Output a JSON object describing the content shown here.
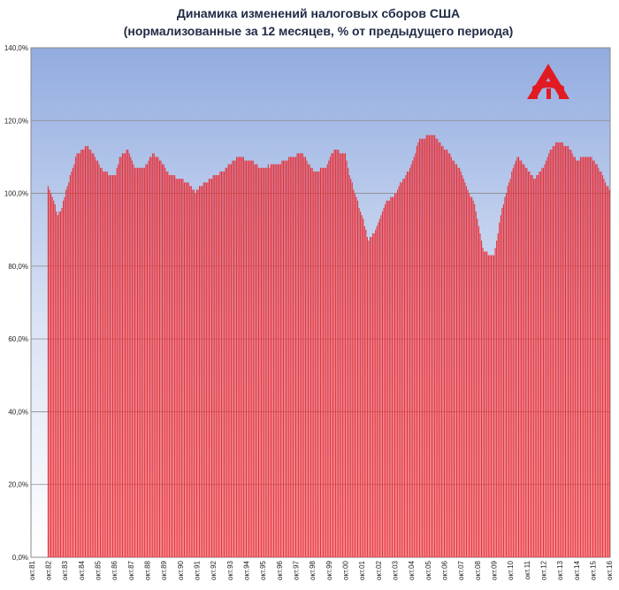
{
  "chart_data": {
    "type": "bar",
    "title": "Динамика изменений налоговых сборов США",
    "subtitle": "(нормализованные за 12 месяцев, % от предыдущего периода)",
    "color": "#e8323a",
    "grid": true,
    "ylim": [
      0,
      140
    ],
    "yticks": [
      {
        "value": 0,
        "label": "0,0%"
      },
      {
        "value": 20,
        "label": "20,0%"
      },
      {
        "value": 40,
        "label": "40,0%"
      },
      {
        "value": 60,
        "label": "60,0%"
      },
      {
        "value": 80,
        "label": "80,0%"
      },
      {
        "value": 100,
        "label": "100,0%"
      },
      {
        "value": 120,
        "label": "120,0%"
      },
      {
        "value": 140,
        "label": "140,0%"
      }
    ],
    "categories": [
      "окт.81",
      null,
      null,
      null,
      null,
      null,
      null,
      null,
      null,
      null,
      null,
      null,
      "окт.82",
      null,
      null,
      null,
      null,
      null,
      null,
      null,
      null,
      null,
      null,
      null,
      "окт.83",
      null,
      null,
      null,
      null,
      null,
      null,
      null,
      null,
      null,
      null,
      null,
      "окт.84",
      null,
      null,
      null,
      null,
      null,
      null,
      null,
      null,
      null,
      null,
      null,
      "окт.85",
      null,
      null,
      null,
      null,
      null,
      null,
      null,
      null,
      null,
      null,
      null,
      "окт.86",
      null,
      null,
      null,
      null,
      null,
      null,
      null,
      null,
      null,
      null,
      null,
      "окт.87",
      null,
      null,
      null,
      null,
      null,
      null,
      null,
      null,
      null,
      null,
      null,
      "окт.88",
      null,
      null,
      null,
      null,
      null,
      null,
      null,
      null,
      null,
      null,
      null,
      "окт.89",
      null,
      null,
      null,
      null,
      null,
      null,
      null,
      null,
      null,
      null,
      null,
      "окт.90",
      null,
      null,
      null,
      null,
      null,
      null,
      null,
      null,
      null,
      null,
      null,
      "окт.91",
      null,
      null,
      null,
      null,
      null,
      null,
      null,
      null,
      null,
      null,
      null,
      "окт.92",
      null,
      null,
      null,
      null,
      null,
      null,
      null,
      null,
      null,
      null,
      null,
      "окт.93",
      null,
      null,
      null,
      null,
      null,
      null,
      null,
      null,
      null,
      null,
      null,
      "окт.94",
      null,
      null,
      null,
      null,
      null,
      null,
      null,
      null,
      null,
      null,
      null,
      "окт.95",
      null,
      null,
      null,
      null,
      null,
      null,
      null,
      null,
      null,
      null,
      null,
      "окт.96",
      null,
      null,
      null,
      null,
      null,
      null,
      null,
      null,
      null,
      null,
      null,
      "окт.97",
      null,
      null,
      null,
      null,
      null,
      null,
      null,
      null,
      null,
      null,
      null,
      "окт.98",
      null,
      null,
      null,
      null,
      null,
      null,
      null,
      null,
      null,
      null,
      null,
      "окт.99",
      null,
      null,
      null,
      null,
      null,
      null,
      null,
      null,
      null,
      null,
      null,
      "окт.00",
      null,
      null,
      null,
      null,
      null,
      null,
      null,
      null,
      null,
      null,
      null,
      "окт.01",
      null,
      null,
      null,
      null,
      null,
      null,
      null,
      null,
      null,
      null,
      null,
      "окт.02",
      null,
      null,
      null,
      null,
      null,
      null,
      null,
      null,
      null,
      null,
      null,
      "окт.03",
      null,
      null,
      null,
      null,
      null,
      null,
      null,
      null,
      null,
      null,
      null,
      "окт.04",
      null,
      null,
      null,
      null,
      null,
      null,
      null,
      null,
      null,
      null,
      null,
      "окт.05",
      null,
      null,
      null,
      null,
      null,
      null,
      null,
      null,
      null,
      null,
      null,
      "окт.06",
      null,
      null,
      null,
      null,
      null,
      null,
      null,
      null,
      null,
      null,
      null,
      "окт.07",
      null,
      null,
      null,
      null,
      null,
      null,
      null,
      null,
      null,
      null,
      null,
      "окт.08",
      null,
      null,
      null,
      null,
      null,
      null,
      null,
      null,
      null,
      null,
      null,
      "окт.09",
      null,
      null,
      null,
      null,
      null,
      null,
      null,
      null,
      null,
      null,
      null,
      "окт.10",
      null,
      null,
      null,
      null,
      null,
      null,
      null,
      null,
      null,
      null,
      null,
      "окт.11",
      null,
      null,
      null,
      null,
      null,
      null,
      null,
      null,
      null,
      null,
      null,
      "окт.12",
      null,
      null,
      null,
      null,
      null,
      null,
      null,
      null,
      null,
      null,
      null,
      "окт.13",
      null,
      null,
      null,
      null,
      null,
      null,
      null,
      null,
      null,
      null,
      null,
      "окт.14",
      null,
      null,
      null,
      null,
      null,
      null,
      null,
      null,
      null,
      null,
      null,
      "окт.15",
      null,
      null,
      null,
      null,
      null,
      null,
      null,
      null,
      null,
      null,
      null,
      "окт.16"
    ],
    "values": [
      null,
      null,
      null,
      null,
      null,
      null,
      null,
      null,
      null,
      null,
      null,
      null,
      102,
      101,
      100,
      99,
      98,
      97,
      95,
      94,
      95,
      95,
      96,
      98,
      99,
      101,
      102,
      103,
      105,
      106,
      107,
      108,
      110,
      111,
      111,
      111,
      112,
      112,
      112,
      113,
      113,
      113,
      112,
      112,
      111,
      111,
      110,
      109,
      109,
      108,
      107,
      107,
      106,
      106,
      106,
      106,
      105,
      105,
      105,
      105,
      105,
      105,
      107,
      108,
      110,
      110,
      111,
      111,
      111,
      112,
      112,
      111,
      110,
      109,
      108,
      107,
      107,
      107,
      107,
      107,
      107,
      107,
      107,
      108,
      108,
      109,
      110,
      110,
      111,
      111,
      110,
      110,
      110,
      109,
      109,
      108,
      108,
      107,
      106,
      106,
      105,
      105,
      105,
      105,
      105,
      104,
      104,
      104,
      104,
      104,
      104,
      103,
      103,
      103,
      103,
      102,
      102,
      101,
      101,
      100,
      101,
      101,
      102,
      102,
      102,
      103,
      103,
      103,
      103,
      104,
      104,
      104,
      105,
      105,
      105,
      105,
      105,
      106,
      106,
      106,
      106,
      107,
      107,
      108,
      108,
      108,
      109,
      109,
      109,
      110,
      110,
      110,
      110,
      110,
      110,
      109,
      109,
      109,
      109,
      109,
      109,
      109,
      108,
      108,
      108,
      107,
      107,
      107,
      107,
      107,
      107,
      107,
      108,
      107,
      108,
      108,
      108,
      108,
      108,
      108,
      108,
      108,
      109,
      109,
      109,
      109,
      109,
      110,
      110,
      110,
      110,
      110,
      110,
      111,
      111,
      111,
      111,
      111,
      110,
      110,
      109,
      108,
      108,
      107,
      107,
      106,
      106,
      106,
      106,
      106,
      107,
      107,
      107,
      107,
      107,
      108,
      109,
      110,
      111,
      111,
      112,
      112,
      112,
      112,
      111,
      111,
      111,
      111,
      111,
      109,
      107,
      105,
      104,
      103,
      101,
      100,
      99,
      98,
      96,
      95,
      94,
      93,
      91,
      90,
      88,
      87,
      88,
      88,
      89,
      89,
      90,
      91,
      92,
      93,
      94,
      95,
      96,
      97,
      98,
      98,
      98,
      99,
      99,
      99,
      100,
      100,
      101,
      102,
      103,
      103,
      104,
      104,
      105,
      106,
      106,
      107,
      108,
      109,
      110,
      111,
      113,
      114,
      115,
      115,
      115,
      115,
      115,
      116,
      116,
      116,
      116,
      116,
      116,
      116,
      115,
      115,
      114,
      114,
      113,
      113,
      112,
      112,
      112,
      111,
      111,
      110,
      109,
      109,
      108,
      108,
      107,
      107,
      106,
      105,
      104,
      103,
      102,
      101,
      100,
      99,
      99,
      98,
      97,
      95,
      93,
      91,
      89,
      87,
      85,
      84,
      84,
      84,
      83,
      83,
      83,
      83,
      83,
      85,
      87,
      89,
      92,
      94,
      96,
      97,
      99,
      100,
      102,
      103,
      104,
      106,
      107,
      108,
      109,
      110,
      110,
      109,
      109,
      108,
      108,
      107,
      107,
      106,
      106,
      105,
      105,
      104,
      104,
      105,
      105,
      106,
      106,
      107,
      107,
      108,
      109,
      110,
      111,
      112,
      112,
      113,
      113,
      114,
      114,
      114,
      114,
      114,
      114,
      113,
      113,
      113,
      113,
      112,
      112,
      111,
      110,
      110,
      109,
      109,
      109,
      110,
      110,
      110,
      110,
      110,
      110,
      110,
      110,
      110,
      109,
      109,
      108,
      108,
      107,
      106,
      106,
      105,
      104,
      103,
      102,
      102,
      101
    ]
  }
}
